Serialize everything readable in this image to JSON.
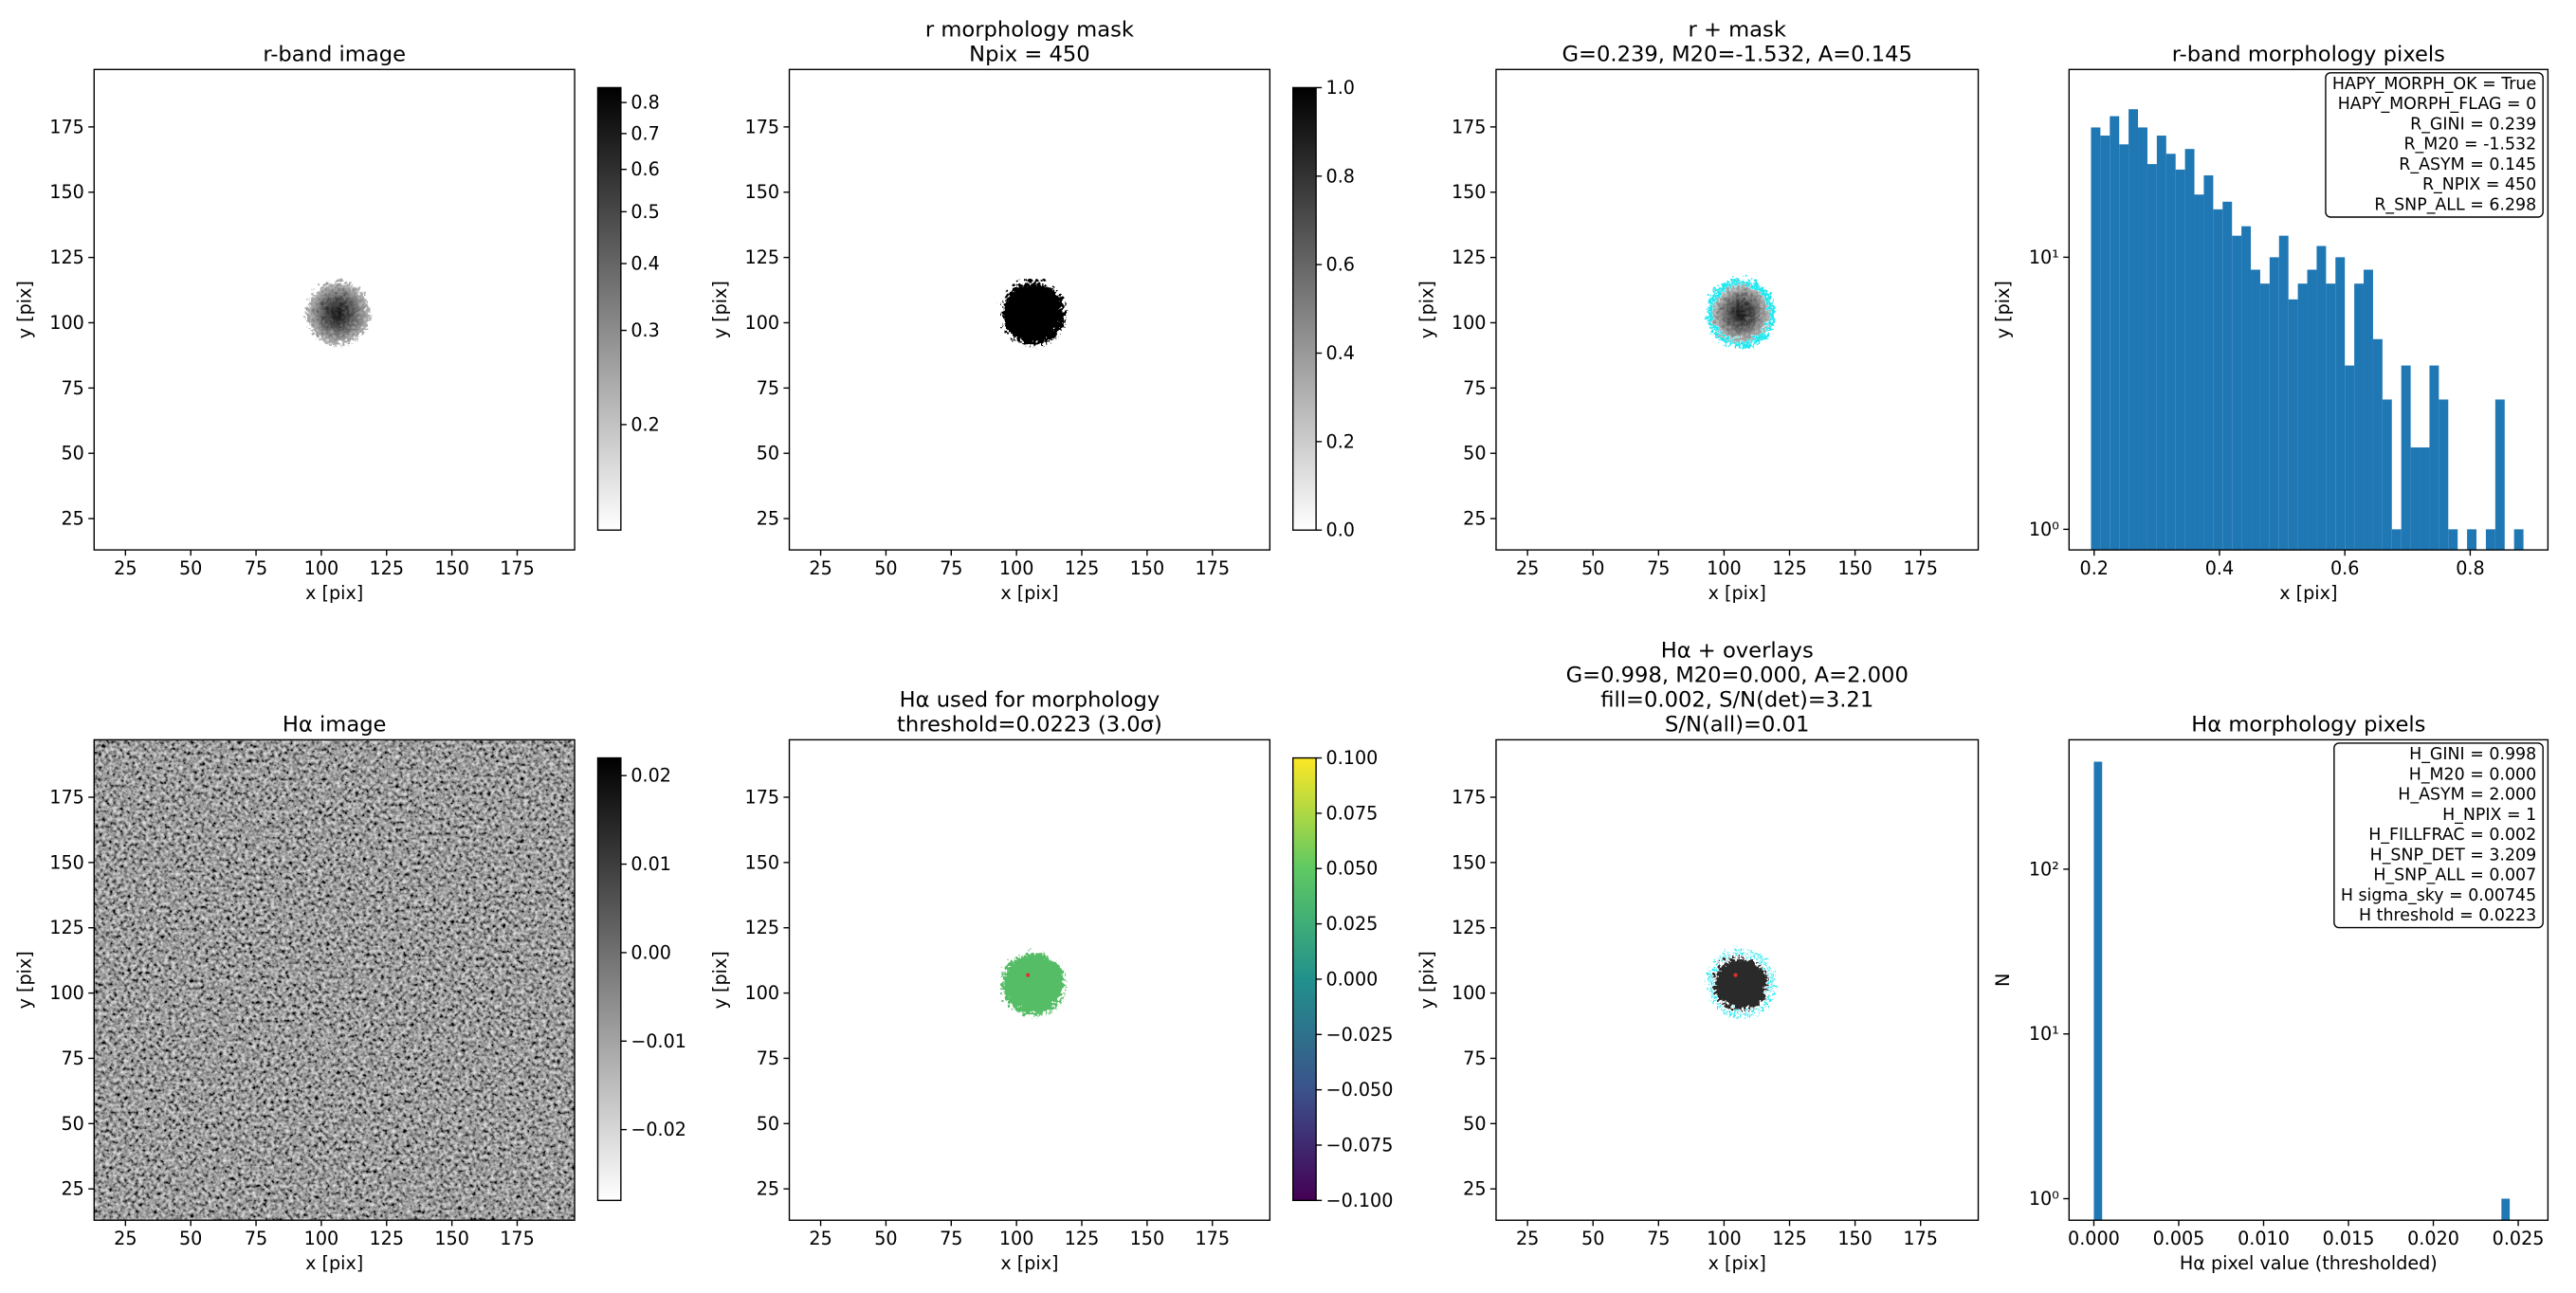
{
  "chart_data": [
    {
      "type": "image",
      "title": [
        "r-band image"
      ],
      "xlabel": "x [pix]",
      "ylabel": "y [pix]",
      "xlim": [
        13,
        197
      ],
      "ylim": [
        13,
        197
      ],
      "xticks": [
        25,
        50,
        75,
        100,
        125,
        150,
        175
      ],
      "yticks": [
        25,
        50,
        75,
        100,
        125,
        150,
        175
      ],
      "colorbar": {
        "cmap": "gray_r",
        "scale": "log",
        "clim": [
          0.127,
          0.853
        ],
        "ticks": [
          0.2,
          0.3,
          0.4,
          0.5,
          0.6,
          0.7,
          0.8
        ]
      }
    },
    {
      "type": "image",
      "title": [
        "r morphology mask",
        "Npix = 450"
      ],
      "xlabel": "x [pix]",
      "ylabel": "y [pix]",
      "xlim": [
        13,
        197
      ],
      "ylim": [
        13,
        197
      ],
      "xticks": [
        25,
        50,
        75,
        100,
        125,
        150,
        175
      ],
      "yticks": [
        25,
        50,
        75,
        100,
        125,
        150,
        175
      ],
      "colorbar": {
        "cmap": "gray_r",
        "scale": "linear",
        "clim": [
          0,
          1
        ],
        "ticks": [
          {
            "value": 0,
            "label": "0.0"
          },
          {
            "value": 0.2,
            "label": "0.2"
          },
          {
            "value": 0.4,
            "label": "0.4"
          },
          {
            "value": 0.6,
            "label": "0.6"
          },
          {
            "value": 0.8,
            "label": "0.8"
          },
          {
            "value": 1,
            "label": "1.0"
          }
        ]
      }
    },
    {
      "type": "image",
      "title": [
        "r + mask",
        "G=0.239, M20=-1.532, A=0.145"
      ],
      "xlabel": "x [pix]",
      "ylabel": "y [pix]",
      "xlim": [
        13,
        197
      ],
      "ylim": [
        13,
        197
      ],
      "xticks": [
        25,
        50,
        75,
        100,
        125,
        150,
        175
      ],
      "yticks": [
        25,
        50,
        75,
        100,
        125,
        150,
        175
      ]
    },
    {
      "type": "hist",
      "title": [
        "r-band morphology pixels"
      ],
      "xlabel": "x [pix]",
      "ylabel": "y [pix]",
      "color": "#1f77b4",
      "yscale": "log",
      "bins": [
        0.195,
        0.21,
        0.225,
        0.24,
        0.255,
        0.27,
        0.285,
        0.3,
        0.315,
        0.33,
        0.345,
        0.36,
        0.375,
        0.39,
        0.405,
        0.42,
        0.435,
        0.45,
        0.465,
        0.48,
        0.495,
        0.51,
        0.525,
        0.54,
        0.555,
        0.57,
        0.585,
        0.6,
        0.615,
        0.63,
        0.645,
        0.66,
        0.675,
        0.69,
        0.705,
        0.72,
        0.735,
        0.75,
        0.765,
        0.78,
        0.795,
        0.81,
        0.825,
        0.84,
        0.855,
        0.87,
        0.885
      ],
      "counts": [
        30,
        28,
        33,
        26,
        35,
        30,
        22,
        28,
        24,
        21,
        25,
        17,
        20,
        15,
        16,
        12,
        13,
        9,
        8,
        10,
        12,
        7,
        8,
        9,
        11,
        8,
        10,
        4,
        8,
        9,
        5,
        3,
        1,
        4,
        2,
        2,
        4,
        3,
        1,
        0,
        1,
        0,
        1,
        3,
        0,
        1
      ],
      "xlim": [
        0.16,
        0.924
      ],
      "ylim": [
        0.84,
        49
      ],
      "xticks": [
        0.2,
        0.4,
        0.6,
        0.8
      ],
      "yticks": [
        {
          "value": 1,
          "label": "10⁰"
        },
        {
          "value": 10,
          "label": "10¹"
        }
      ],
      "annotation": [
        "HAPY_MORPH_OK = True",
        "HAPY_MORPH_FLAG = 0",
        "R_GINI = 0.239",
        "R_M20 = -1.532",
        "R_ASYM = 0.145",
        "R_NPIX = 450",
        "R_SNP_ALL = 6.298"
      ]
    },
    {
      "type": "image",
      "title": [
        "Hα image"
      ],
      "xlabel": "x [pix]",
      "ylabel": "y [pix]",
      "xlim": [
        13,
        197
      ],
      "ylim": [
        13,
        197
      ],
      "xticks": [
        25,
        50,
        75,
        100,
        125,
        150,
        175
      ],
      "yticks": [
        25,
        50,
        75,
        100,
        125,
        150,
        175
      ],
      "colorbar": {
        "cmap": "gray_r",
        "scale": "linear",
        "clim": [
          -0.028,
          0.022
        ],
        "ticks": [
          {
            "value": -0.02,
            "label": "−0.02"
          },
          {
            "value": -0.01,
            "label": "−0.01"
          },
          {
            "value": 0,
            "label": "0.00"
          },
          {
            "value": 0.01,
            "label": "0.01"
          },
          {
            "value": 0.02,
            "label": "0.02"
          }
        ]
      }
    },
    {
      "type": "image",
      "title": [
        "Hα used for morphology",
        "threshold=0.0223 (3.0σ)"
      ],
      "xlabel": "x [pix]",
      "ylabel": "y [pix]",
      "xlim": [
        13,
        197
      ],
      "ylim": [
        13,
        197
      ],
      "xticks": [
        25,
        50,
        75,
        100,
        125,
        150,
        175
      ],
      "yticks": [
        25,
        50,
        75,
        100,
        125,
        150,
        175
      ],
      "colorbar": {
        "cmap": "viridis",
        "scale": "linear",
        "clim": [
          -0.1,
          0.1
        ],
        "ticks": [
          {
            "value": -0.1,
            "label": "−0.100"
          },
          {
            "value": -0.075,
            "label": "−0.075"
          },
          {
            "value": -0.05,
            "label": "−0.050"
          },
          {
            "value": -0.025,
            "label": "−0.025"
          },
          {
            "value": 0,
            "label": "0.000"
          },
          {
            "value": 0.025,
            "label": "0.025"
          },
          {
            "value": 0.05,
            "label": "0.050"
          },
          {
            "value": 0.075,
            "label": "0.075"
          },
          {
            "value": 0.1,
            "label": "0.100"
          }
        ]
      }
    },
    {
      "type": "image",
      "title": [
        "Hα + overlays",
        "G=0.998, M20=0.000, A=2.000",
        "fill=0.002, S/N(det)=3.21",
        "S/N(all)=0.01"
      ],
      "xlabel": "x [pix]",
      "ylabel": "y [pix]",
      "xlim": [
        13,
        197
      ],
      "ylim": [
        13,
        197
      ],
      "xticks": [
        25,
        50,
        75,
        100,
        125,
        150,
        175
      ],
      "yticks": [
        25,
        50,
        75,
        100,
        125,
        150,
        175
      ]
    },
    {
      "type": "hist",
      "title": [
        "Hα morphology pixels"
      ],
      "xlabel": "Hα pixel value (thresholded)",
      "ylabel": "N",
      "color": "#1f77b4",
      "yscale": "log",
      "bins": [
        0,
        0.00049,
        0.00098,
        0.00147,
        0.00196,
        0.00245,
        0.00294,
        0.00343,
        0.00392,
        0.00441,
        0.0049,
        0.00539,
        0.00588,
        0.00637,
        0.00686,
        0.00735,
        0.00784,
        0.00833,
        0.00882,
        0.00931,
        0.0098,
        0.01029,
        0.01078,
        0.01127,
        0.01176,
        0.01225,
        0.01274,
        0.01323,
        0.01372,
        0.01421,
        0.0147,
        0.01519,
        0.01568,
        0.01617,
        0.01666,
        0.01715,
        0.01764,
        0.01813,
        0.01862,
        0.01911,
        0.0196,
        0.02009,
        0.02058,
        0.02107,
        0.02156,
        0.02205,
        0.02254,
        0.02303,
        0.02352,
        0.02401,
        0.0245
      ],
      "counts": [
        449,
        0,
        0,
        0,
        0,
        0,
        0,
        0,
        0,
        0,
        0,
        0,
        0,
        0,
        0,
        0,
        0,
        0,
        0,
        0,
        0,
        0,
        0,
        0,
        0,
        0,
        0,
        0,
        0,
        0,
        0,
        0,
        0,
        0,
        0,
        0,
        0,
        0,
        0,
        0,
        0,
        0,
        0,
        0,
        0,
        0,
        0,
        0,
        0,
        1
      ],
      "xlim": [
        -0.00146,
        0.02675
      ],
      "ylim": [
        0.74,
        610
      ],
      "xticks": [
        {
          "value": 0,
          "label": "0.000"
        },
        {
          "value": 0.005,
          "label": "0.005"
        },
        {
          "value": 0.01,
          "label": "0.010"
        },
        {
          "value": 0.015,
          "label": "0.015"
        },
        {
          "value": 0.02,
          "label": "0.020"
        },
        {
          "value": 0.025,
          "label": "0.025"
        }
      ],
      "yticks": [
        {
          "value": 1,
          "label": "10⁰"
        },
        {
          "value": 10,
          "label": "10¹"
        },
        {
          "value": 100,
          "label": "10²"
        }
      ],
      "annotation": [
        "H_GINI = 0.998",
        "H_M20 = 0.000",
        "H_ASYM = 2.000",
        "H_NPIX = 1",
        "H_FILLFRAC = 0.002",
        "H_SNP_DET = 3.209",
        "H_SNP_ALL = 0.007",
        "H sigma_sky = 0.00745",
        "H threshold = 0.0223"
      ]
    }
  ]
}
